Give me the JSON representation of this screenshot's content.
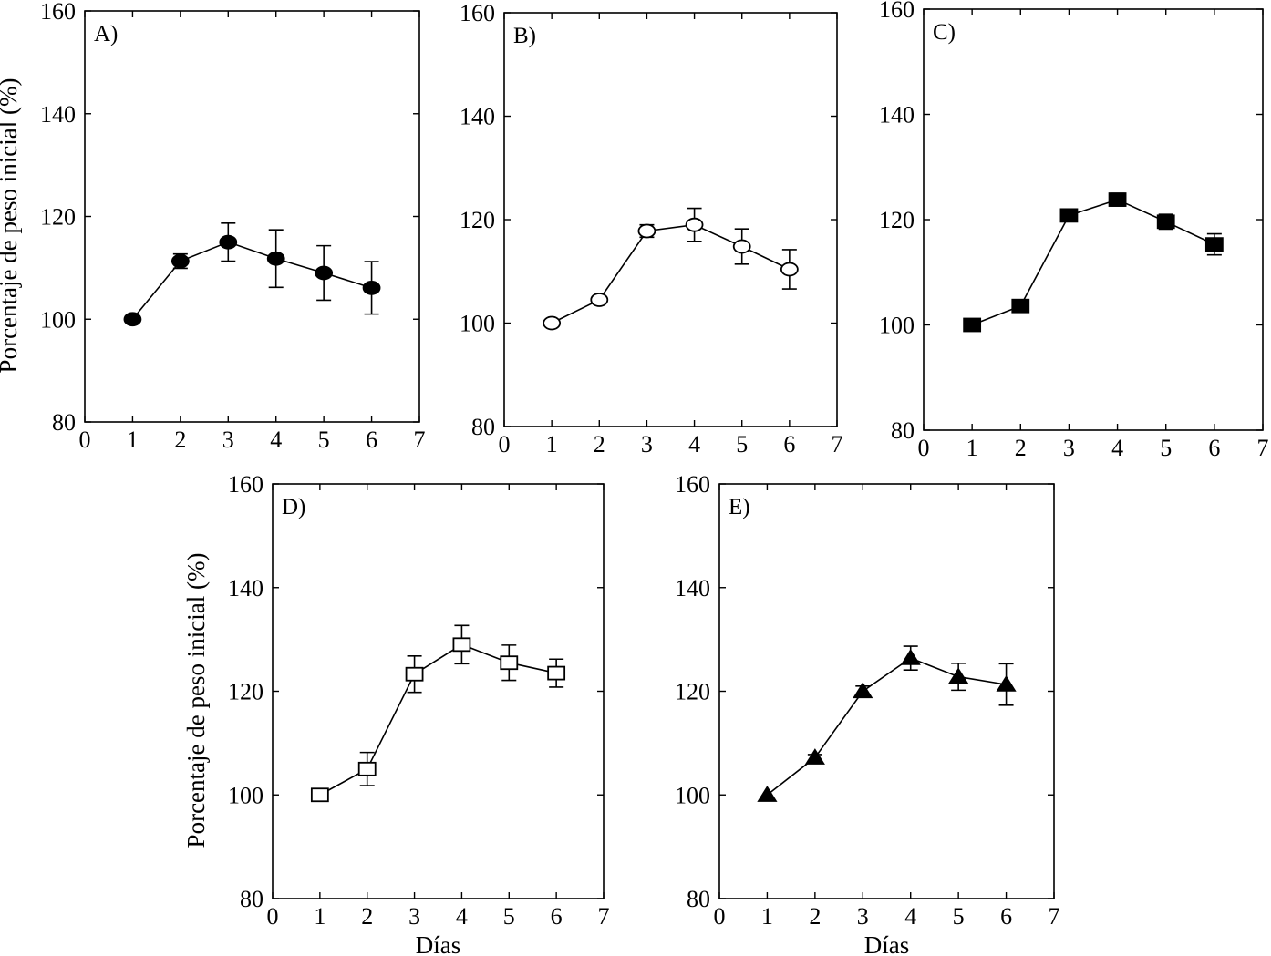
{
  "chart_data": [
    {
      "type": "line",
      "panel_label": "A)",
      "marker": "filled-circle",
      "ylabel": "Porcentaje de peso inicial (%)",
      "xlabel": "",
      "xlim": [
        0,
        7
      ],
      "ylim": [
        80,
        160
      ],
      "xticks": [
        "0",
        "1",
        "2",
        "3",
        "4",
        "5",
        "6",
        "7"
      ],
      "yticks": [
        "80",
        "100",
        "120",
        "140",
        "160"
      ],
      "x": [
        1,
        2,
        3,
        4,
        5,
        6
      ],
      "values": [
        100,
        111.3,
        115,
        111.8,
        109,
        106.1
      ],
      "errors": [
        0,
        1.4,
        3.7,
        5.6,
        5.3,
        5.1
      ]
    },
    {
      "type": "line",
      "panel_label": "B)",
      "marker": "open-circle",
      "ylabel": "",
      "xlabel": "",
      "xlim": [
        0,
        7
      ],
      "ylim": [
        80,
        160
      ],
      "xticks": [
        "0",
        "1",
        "2",
        "3",
        "4",
        "5",
        "6",
        "7"
      ],
      "yticks": [
        "80",
        "100",
        "120",
        "140",
        "160"
      ],
      "x": [
        1,
        2,
        3,
        4,
        5,
        6
      ],
      "values": [
        100,
        104.5,
        117.8,
        119,
        114.8,
        110.4
      ],
      "errors": [
        0,
        0.5,
        1.2,
        3.2,
        3.4,
        3.8
      ]
    },
    {
      "type": "line",
      "panel_label": "C)",
      "marker": "filled-square",
      "ylabel": "",
      "xlabel": "",
      "xlim": [
        0,
        7
      ],
      "ylim": [
        80,
        160
      ],
      "xticks": [
        "0",
        "1",
        "2",
        "3",
        "4",
        "5",
        "6",
        "7"
      ],
      "yticks": [
        "80",
        "100",
        "120",
        "140",
        "160"
      ],
      "x": [
        1,
        2,
        3,
        4,
        5,
        6
      ],
      "values": [
        100,
        103.6,
        120.8,
        123.8,
        119.6,
        115.3
      ],
      "errors": [
        0,
        0.8,
        0.8,
        1.2,
        1.4,
        2
      ]
    },
    {
      "type": "line",
      "panel_label": "D)",
      "marker": "open-square",
      "ylabel": "Porcentaje de peso inicial (%)",
      "xlabel": "Días",
      "xlim": [
        0,
        7
      ],
      "ylim": [
        80,
        160
      ],
      "xticks": [
        "0",
        "1",
        "2",
        "3",
        "4",
        "5",
        "6",
        "7"
      ],
      "yticks": [
        "80",
        "100",
        "120",
        "140",
        "160"
      ],
      "x": [
        1,
        2,
        3,
        4,
        5,
        6
      ],
      "values": [
        100,
        105,
        123.3,
        129,
        125.5,
        123.5
      ],
      "errors": [
        0,
        3.2,
        3.5,
        3.7,
        3.4,
        2.7
      ]
    },
    {
      "type": "line",
      "panel_label": "E)",
      "marker": "filled-triangle",
      "ylabel": "",
      "xlabel": "Días",
      "xlim": [
        0,
        7
      ],
      "ylim": [
        80,
        160
      ],
      "xticks": [
        "0",
        "1",
        "2",
        "3",
        "4",
        "5",
        "6",
        "7"
      ],
      "yticks": [
        "80",
        "100",
        "120",
        "140",
        "160"
      ],
      "x": [
        1,
        2,
        3,
        4,
        5,
        6
      ],
      "values": [
        100,
        107.2,
        120,
        126.4,
        122.8,
        121.3
      ],
      "errors": [
        0,
        0.6,
        1,
        2.3,
        2.6,
        4
      ]
    }
  ]
}
